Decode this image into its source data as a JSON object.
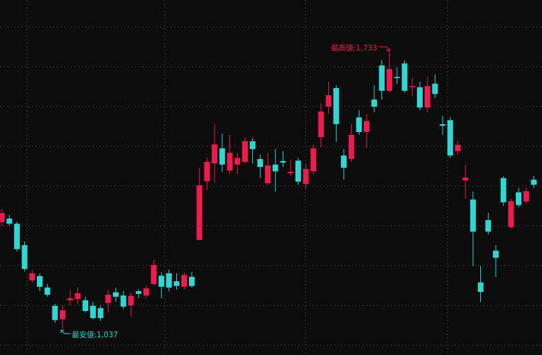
{
  "chart_data": {
    "type": "candlestick",
    "ylim": [
      969,
      1864
    ],
    "up_color": "#ee1c4e",
    "down_color": "#2fd6d2",
    "open": [
      1304,
      1313,
      1300,
      1246,
      1157,
      1168,
      1139,
      1093,
      1059,
      1107,
      1110,
      1107,
      1093,
      1087,
      1100,
      1127,
      1119,
      1094,
      1130,
      1119,
      1148,
      1169,
      1175,
      1155,
      1141,
      1166,
      1259,
      1407,
      1452,
      1490,
      1434,
      1449,
      1456,
      1508,
      1463,
      1402,
      1449,
      1458,
      1427,
      1459,
      1400,
      1432,
      1518,
      1595,
      1642,
      1472,
      1463,
      1568,
      1531,
      1613,
      1699,
      1635,
      1670,
      1704,
      1644,
      1644,
      1593,
      1653,
      1551,
      1561,
      1483,
      1409,
      1361,
      1152,
      1309,
      1232,
      1415,
      1291,
      1379,
      1356,
      1411
    ],
    "high": [
      1336,
      1322,
      1305,
      1255,
      1184,
      1175,
      1148,
      1098,
      1094,
      1134,
      1139,
      1116,
      1103,
      1094,
      1134,
      1139,
      1130,
      1127,
      1135,
      1144,
      1209,
      1178,
      1184,
      1175,
      1178,
      1178,
      1441,
      1466,
      1551,
      1527,
      1524,
      1479,
      1518,
      1515,
      1474,
      1479,
      1488,
      1483,
      1461,
      1466,
      1449,
      1499,
      1604,
      1658,
      1649,
      1488,
      1551,
      1586,
      1577,
      1649,
      1712,
      1733,
      1694,
      1712,
      1667,
      1658,
      1670,
      1676,
      1572,
      1568,
      1509,
      1449,
      1381,
      1193,
      1327,
      1246,
      1420,
      1363,
      1390,
      1390,
      1420
    ],
    "low": [
      1295,
      1295,
      1230,
      1180,
      1152,
      1130,
      1116,
      1050,
      1037,
      1094,
      1098,
      1076,
      1059,
      1055,
      1076,
      1103,
      1085,
      1066,
      1112,
      1112,
      1143,
      1112,
      1130,
      1134,
      1134,
      1139,
      1259,
      1384,
      1404,
      1431,
      1425,
      1425,
      1452,
      1452,
      1416,
      1398,
      1381,
      1443,
      1420,
      1398,
      1388,
      1425,
      1493,
      1577,
      1506,
      1411,
      1456,
      1524,
      1491,
      1581,
      1613,
      1631,
      1653,
      1631,
      1622,
      1586,
      1581,
      1617,
      1524,
      1466,
      1474,
      1363,
      1193,
      1103,
      1273,
      1166,
      1345,
      1288,
      1341,
      1350,
      1390
    ],
    "close": [
      1327,
      1300,
      1236,
      1186,
      1175,
      1141,
      1121,
      1057,
      1082,
      1112,
      1125,
      1080,
      1062,
      1062,
      1121,
      1116,
      1091,
      1118,
      1123,
      1137,
      1196,
      1141,
      1139,
      1143,
      1171,
      1143,
      1397,
      1456,
      1500,
      1449,
      1479,
      1466,
      1508,
      1488,
      1443,
      1447,
      1432,
      1454,
      1431,
      1406,
      1438,
      1490,
      1583,
      1624,
      1551,
      1441,
      1524,
      1531,
      1559,
      1595,
      1635,
      1690,
      1667,
      1635,
      1647,
      1593,
      1647,
      1627,
      1547,
      1472,
      1499,
      1416,
      1280,
      1128,
      1280,
      1214,
      1354,
      1357,
      1347,
      1382,
      1398
    ],
    "annotations": [
      "最高値:1,733",
      "最安値:1,037"
    ]
  }
}
